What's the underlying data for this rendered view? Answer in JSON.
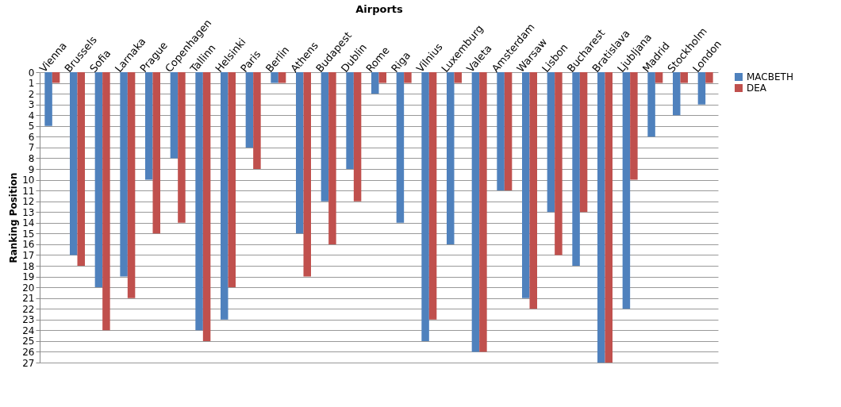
{
  "chart_data": {
    "type": "bar",
    "xlabel": "Airports",
    "ylabel": "Ranking Position",
    "categories": [
      "Vienna",
      "Brussels",
      "Sofia",
      "Larnaka",
      "Prague",
      "Copenhagen",
      "Tallinn",
      "Helsinki",
      "Paris",
      "Berlin",
      "Athens",
      "Budapest",
      "Dublin",
      "Rome",
      "Riga",
      "Vilnius",
      "Luxemburg",
      "Valeta",
      "Amsterdam",
      "Warsaw",
      "Lisbon",
      "Bucharest",
      "Bratislava",
      "Ljubljana",
      "Madrid",
      "Stockholm",
      "London"
    ],
    "series": [
      {
        "name": "MACBETH",
        "color": "#4f81bd",
        "values": [
          5,
          17,
          20,
          19,
          10,
          8,
          24,
          23,
          7,
          1,
          15,
          12,
          9,
          2,
          14,
          25,
          16,
          26,
          11,
          21,
          13,
          18,
          27,
          22,
          6,
          4,
          3
        ]
      },
      {
        "name": "DEA",
        "color": "#c0504d",
        "values": [
          1,
          18,
          24,
          21,
          15,
          14,
          25,
          20,
          9,
          1,
          19,
          16,
          12,
          1,
          1,
          23,
          1,
          26,
          11,
          22,
          17,
          13,
          27,
          10,
          1,
          1,
          1
        ]
      }
    ],
    "ylim": [
      27,
      0
    ],
    "yticks": [
      0,
      1,
      2,
      3,
      4,
      5,
      6,
      7,
      8,
      9,
      10,
      11,
      12,
      13,
      14,
      15,
      16,
      17,
      18,
      19,
      20,
      21,
      22,
      23,
      24,
      25,
      26,
      27
    ],
    "grid": "y",
    "legend": "right"
  }
}
